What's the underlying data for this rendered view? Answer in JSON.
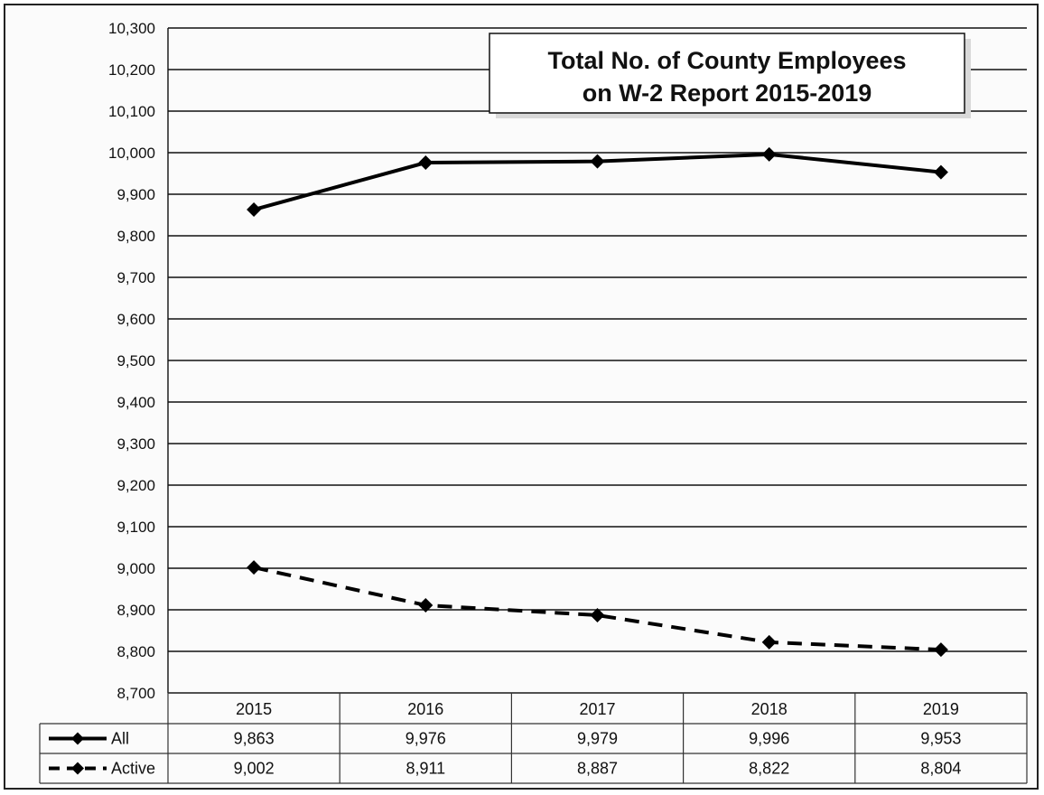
{
  "chart_data": {
    "type": "line",
    "title_lines": [
      "Total No. of County Employees",
      "on W-2 Report 2015-2019"
    ],
    "x": [
      "2015",
      "2016",
      "2017",
      "2018",
      "2019"
    ],
    "ylim": [
      8700,
      10300
    ],
    "y_ticks": [
      "8,700",
      "8,800",
      "8,900",
      "9,000",
      "9,100",
      "9,200",
      "9,300",
      "9,400",
      "9,500",
      "9,600",
      "9,700",
      "9,800",
      "9,900",
      "10,000",
      "10,100",
      "10,200",
      "10,300"
    ],
    "grid": true,
    "legend": "data-table",
    "series": [
      {
        "name": "All",
        "values": [
          9863,
          9976,
          9979,
          9996,
          9953
        ],
        "value_labels": [
          "9,863",
          "9,976",
          "9,979",
          "9,996",
          "9,953"
        ],
        "line_style": "solid",
        "marker": "diamond",
        "color": "#000000"
      },
      {
        "name": "Active",
        "values": [
          9002,
          8911,
          8887,
          8822,
          8804
        ],
        "value_labels": [
          "9,002",
          "8,911",
          "8,887",
          "8,822",
          "8,804"
        ],
        "line_style": "dashed",
        "marker": "diamond",
        "color": "#000000"
      }
    ]
  }
}
